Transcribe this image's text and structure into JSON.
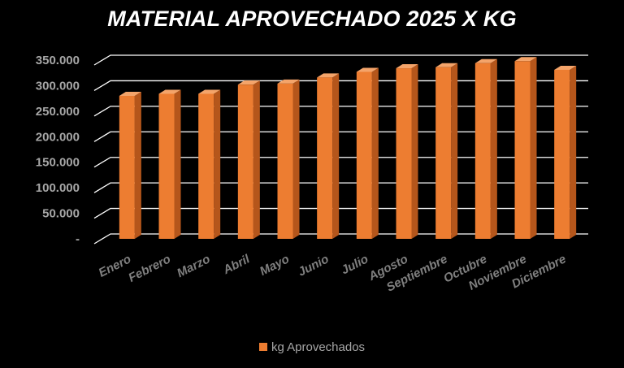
{
  "colors": {
    "background": "#000000",
    "bar_front": "#ed7d31",
    "bar_side": "#b5561b",
    "bar_top": "#f4a46a",
    "grid": "#ffffff",
    "title": "#ffffff",
    "ytick": "#a6a6a6",
    "xtick": "#7f7f7f",
    "legend_text": "#a6a6a6"
  },
  "chart_data": {
    "type": "bar",
    "title": "MATERIAL APROVECHADO 2025 X KG",
    "xlabel": "",
    "ylabel": "",
    "ylim": [
      0,
      350000
    ],
    "yticks": [
      0,
      50000,
      100000,
      150000,
      200000,
      250000,
      300000,
      350000
    ],
    "ytick_labels": [
      "-",
      "50.000",
      "100.000",
      "150.000",
      "200.000",
      "250.000",
      "300.000",
      "350.000"
    ],
    "grid": true,
    "legend_position": "bottom",
    "categories": [
      "Enero",
      "Febrero",
      "Marzo",
      "Abril",
      "Mayo",
      "Junio",
      "Julio",
      "Agosto",
      "Septiembre",
      "Octubre",
      "Noviembre",
      "Diciembre"
    ],
    "series": [
      {
        "name": "kg Aprovechados",
        "values": [
          280000,
          284000,
          284000,
          302000,
          304000,
          316000,
          327000,
          334000,
          336000,
          344000,
          348000,
          331000
        ]
      }
    ]
  }
}
